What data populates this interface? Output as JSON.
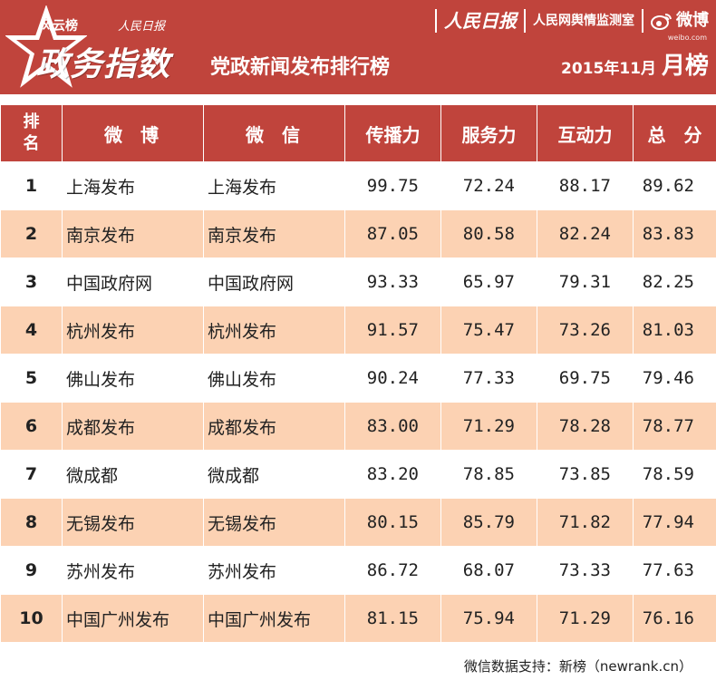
{
  "header": {
    "brand_small": "风云榜",
    "brand_paper_small": "人民日报",
    "brand_big": "政务指数",
    "subtitle": "党政新闻发布排行榜",
    "top_right": {
      "paper": "人民日报",
      "monitor": "人民网舆情监测室",
      "weibo": "微博",
      "weibo_url": "weibo.com"
    },
    "period_date": "2015年11月",
    "period_label": "月榜",
    "accent_color": "#c0443c"
  },
  "table": {
    "columns": {
      "rank": "排名",
      "weibo": "微　博",
      "weixin": "微　信",
      "spread": "传播力",
      "service": "服务力",
      "interact": "互动力",
      "total": "总　分"
    },
    "rows": [
      {
        "rank": "1",
        "weibo": "上海发布",
        "weixin": "上海发布",
        "spread": "99.75",
        "service": "72.24",
        "interact": "88.17",
        "total": "89.62"
      },
      {
        "rank": "2",
        "weibo": "南京发布",
        "weixin": "南京发布",
        "spread": "87.05",
        "service": "80.58",
        "interact": "82.24",
        "total": "83.83"
      },
      {
        "rank": "3",
        "weibo": "中国政府网",
        "weixin": "中国政府网",
        "spread": "93.33",
        "service": "65.97",
        "interact": "79.31",
        "total": "82.25"
      },
      {
        "rank": "4",
        "weibo": "杭州发布",
        "weixin": "杭州发布",
        "spread": "91.57",
        "service": "75.47",
        "interact": "73.26",
        "total": "81.03"
      },
      {
        "rank": "5",
        "weibo": "佛山发布",
        "weixin": "佛山发布",
        "spread": "90.24",
        "service": "77.33",
        "interact": "69.75",
        "total": "79.46"
      },
      {
        "rank": "6",
        "weibo": "成都发布",
        "weixin": "成都发布",
        "spread": "83.00",
        "service": "71.29",
        "interact": "78.28",
        "total": "78.77"
      },
      {
        "rank": "7",
        "weibo": "微成都",
        "weixin": "微成都",
        "spread": "83.20",
        "service": "78.85",
        "interact": "73.85",
        "total": "78.59"
      },
      {
        "rank": "8",
        "weibo": "无锡发布",
        "weixin": "无锡发布",
        "spread": "80.15",
        "service": "85.79",
        "interact": "71.82",
        "total": "77.94"
      },
      {
        "rank": "9",
        "weibo": "苏州发布",
        "weixin": "苏州发布",
        "spread": "86.72",
        "service": "68.07",
        "interact": "73.33",
        "total": "77.63"
      },
      {
        "rank": "10",
        "weibo": "中国广州发布",
        "weixin": "中国广州发布",
        "spread": "81.15",
        "service": "75.94",
        "interact": "71.29",
        "total": "76.16"
      }
    ]
  },
  "footer": {
    "credit": "微信数据支持：新榜（newrank.cn）"
  }
}
